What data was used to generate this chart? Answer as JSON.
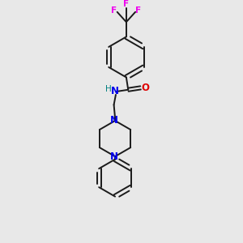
{
  "bg_color": "#e8e8e8",
  "bond_color": "#1a1a1a",
  "N_color": "#0000ee",
  "O_color": "#dd0000",
  "F_color": "#ee00ee",
  "H_color": "#008080",
  "figsize": [
    3.0,
    3.0
  ],
  "dpi": 100,
  "xlim": [
    0,
    10
  ],
  "ylim": [
    0,
    10
  ]
}
